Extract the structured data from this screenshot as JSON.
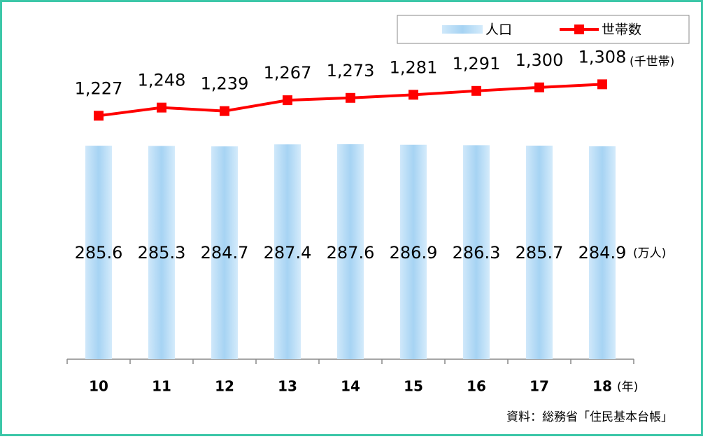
{
  "chart_data": {
    "type": "bar_line",
    "categories": [
      "10",
      "11",
      "12",
      "13",
      "14",
      "15",
      "16",
      "17",
      "18"
    ],
    "x_unit": "(年)",
    "series": [
      {
        "name": "人口",
        "type": "bar",
        "color": "#b7dcf5",
        "unit": "(万人)",
        "values": [
          285.6,
          285.3,
          284.7,
          287.4,
          287.6,
          286.9,
          286.3,
          285.7,
          284.9
        ]
      },
      {
        "name": "世帯数",
        "type": "line",
        "axis": "y2",
        "color": "#ff0000",
        "unit": "(千世帯)",
        "values": [
          1227,
          1248,
          1239,
          1267,
          1273,
          1281,
          1291,
          1300,
          1308
        ],
        "value_labels": [
          "1,227",
          "1,248",
          "1,239",
          "1,267",
          "1,273",
          "1,281",
          "1,291",
          "1,300",
          "1,308"
        ]
      }
    ],
    "ylim": [
      0,
      400
    ],
    "y2lim": [
      600,
      1370
    ],
    "source": "資料：総務省「住民基本台帳」"
  }
}
